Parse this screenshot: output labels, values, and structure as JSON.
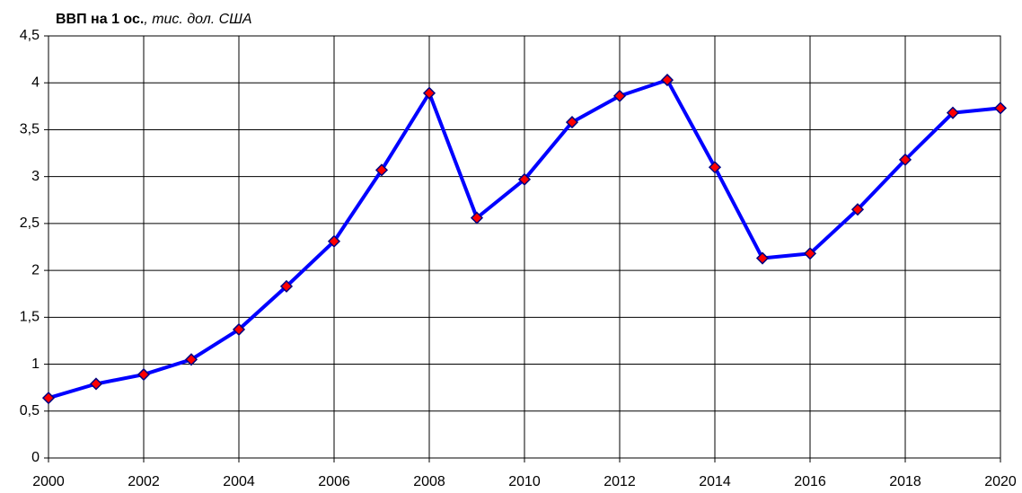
{
  "chart_data": {
    "type": "line",
    "title": "ВВП на 1 ос.",
    "title_unit": ", тис. дол. США",
    "x": [
      2000,
      2001,
      2002,
      2003,
      2004,
      2005,
      2006,
      2007,
      2008,
      2009,
      2010,
      2011,
      2012,
      2013,
      2014,
      2015,
      2016,
      2017,
      2018,
      2019,
      2020
    ],
    "series": [
      {
        "color": "#0000ff",
        "marker_color": "#ff0000",
        "values": [
          0.64,
          0.79,
          0.89,
          1.05,
          1.37,
          1.83,
          2.31,
          3.07,
          3.89,
          2.56,
          2.97,
          3.58,
          3.86,
          4.03,
          3.1,
          2.13,
          2.18,
          2.65,
          3.18,
          3.68,
          3.73
        ]
      }
    ],
    "xlim": [
      2000,
      2020
    ],
    "xticks": [
      2000,
      2002,
      2004,
      2006,
      2008,
      2010,
      2012,
      2014,
      2016,
      2018,
      2020
    ],
    "ylim": [
      0,
      4.5
    ],
    "yticks": [
      0,
      {
        "value": 0.5,
        "label": "0,5"
      },
      1,
      {
        "value": 1.5,
        "label": "1,5"
      },
      2,
      {
        "value": 2.5,
        "label": "2,5"
      },
      3,
      {
        "value": 3.5,
        "label": "3,5"
      },
      4,
      {
        "value": 4.5,
        "label": "4,5"
      }
    ],
    "grid": true
  }
}
